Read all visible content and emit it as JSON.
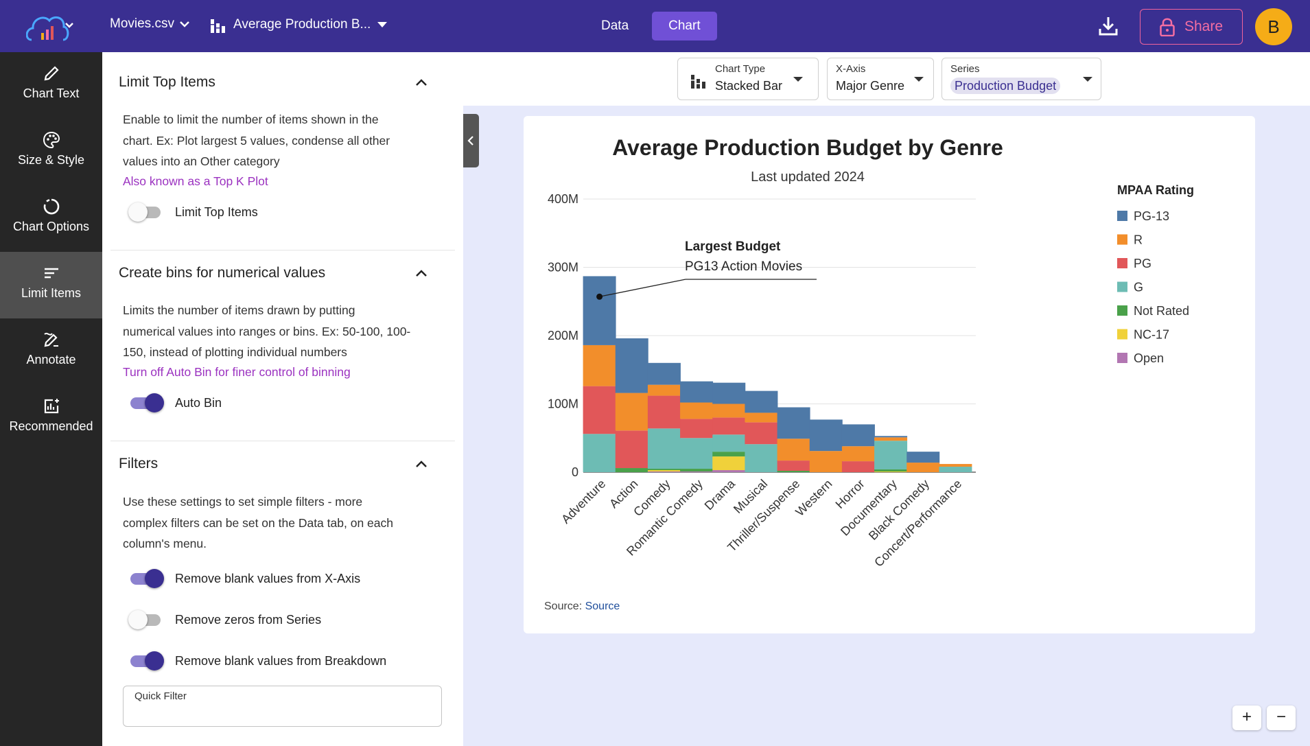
{
  "topbar": {
    "file_name": "Movies.csv",
    "chart_name": "Average Production B...",
    "tabs": [
      {
        "label": "Data",
        "active": false
      },
      {
        "label": "Chart",
        "active": true
      }
    ],
    "share_label": "Share",
    "avatar_initial": "B"
  },
  "sidebar": {
    "items": [
      {
        "label": "Chart Text",
        "icon": "pencil-icon"
      },
      {
        "label": "Size & Style",
        "icon": "palette-icon"
      },
      {
        "label": "Chart Options",
        "icon": "circle-icon"
      },
      {
        "label": "Limit Items",
        "icon": "lines-icon",
        "active": true
      },
      {
        "label": "Annotate",
        "icon": "annotate-icon"
      },
      {
        "label": "Recommended",
        "icon": "recommended-icon"
      }
    ]
  },
  "panel": {
    "limit_top": {
      "title": "Limit Top Items",
      "desc_lines": [
        "Enable to limit the number of items shown in the",
        "chart. Ex: Plot largest 5 values, condense all other",
        "values into an Other category"
      ],
      "link": "Also known as a Top K Plot",
      "toggle_label": "Limit Top Items",
      "toggle_on": false
    },
    "bins": {
      "title": "Create bins for numerical values",
      "desc_lines": [
        "Limits the number of items drawn by putting",
        "numerical values into ranges or bins. Ex: 50-100, 100-",
        "150, instead of plotting individual numbers"
      ],
      "link": "Turn off Auto Bin for finer control of binning",
      "toggle_label": "Auto Bin",
      "toggle_on": true
    },
    "filters": {
      "title": "Filters",
      "desc_lines": [
        "Use these settings to set simple filters - more",
        "complex filters can be set on the Data tab, on each",
        "column's menu."
      ],
      "toggles": [
        {
          "label": "Remove blank values from X-Axis",
          "on": true
        },
        {
          "label": "Remove zeros from Series",
          "on": false
        },
        {
          "label": "Remove blank values from Breakdown",
          "on": true
        }
      ],
      "quick_filter_label": "Quick Filter",
      "quick_filter_value": ""
    }
  },
  "selectors": {
    "chart_type": {
      "label": "Chart Type",
      "value": "Stacked Bar"
    },
    "x_axis": {
      "label": "X-Axis",
      "value": "Major Genre"
    },
    "series": {
      "label": "Series",
      "value": "Production Budget"
    }
  },
  "chart_data": {
    "type": "bar",
    "stacked": true,
    "title": "Average Production Budget by Genre",
    "subtitle": "Last updated 2024",
    "xlabel": "",
    "ylabel": "",
    "ylim": [
      0,
      400
    ],
    "ytick_values": [
      0,
      100,
      200,
      300,
      400
    ],
    "ytick_labels": [
      "0",
      "100M",
      "200M",
      "300M",
      "400M"
    ],
    "legend_title": "MPAA Rating",
    "legend_position": "right",
    "categories": [
      "Adventure",
      "Action",
      "Comedy",
      "Romantic Comedy",
      "Drama",
      "Musical",
      "Thriller/Suspense",
      "Western",
      "Horror",
      "Documentary",
      "Black Comedy",
      "Concert/Performance"
    ],
    "series": [
      {
        "name": "Open",
        "color": "#b276b2",
        "values": [
          0,
          0,
          1,
          1,
          3,
          0,
          0,
          0,
          0,
          0,
          0,
          0
        ]
      },
      {
        "name": "NC-17",
        "color": "#f0d13a",
        "values": [
          0,
          0,
          2,
          0,
          20,
          0,
          0,
          0,
          0,
          1,
          0,
          0
        ]
      },
      {
        "name": "Not Rated",
        "color": "#4aa14a",
        "values": [
          0,
          6,
          2,
          4,
          7,
          0,
          2,
          0,
          0,
          3,
          0,
          0
        ]
      },
      {
        "name": "G",
        "color": "#6dbcb4",
        "values": [
          56,
          0,
          59,
          45,
          25,
          41,
          0,
          0,
          0,
          42,
          0,
          8
        ]
      },
      {
        "name": "PG",
        "color": "#e15759",
        "values": [
          70,
          55,
          48,
          28,
          25,
          32,
          15,
          0,
          16,
          0,
          0,
          0
        ]
      },
      {
        "name": "R",
        "color": "#f28e2b",
        "values": [
          60,
          55,
          16,
          24,
          20,
          14,
          32,
          31,
          22,
          5,
          14,
          4
        ]
      },
      {
        "name": "PG-13",
        "color": "#4e79a7",
        "values": [
          101,
          80,
          32,
          31,
          31,
          32,
          46,
          46,
          32,
          2,
          16,
          0
        ]
      }
    ],
    "legend_order": [
      "PG-13",
      "R",
      "PG",
      "G",
      "Not Rated",
      "NC-17",
      "Open"
    ],
    "annotation": {
      "title": "Largest Budget",
      "text": "PG13 Action Movies",
      "category": "Adventure",
      "value": 257
    },
    "source_prefix": "Source:",
    "source_link": "Source"
  },
  "zoom": {
    "in_label": "+",
    "out_label": "−"
  }
}
